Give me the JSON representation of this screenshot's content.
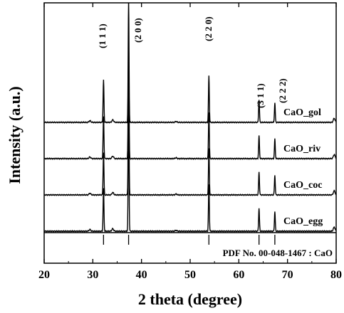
{
  "chart_data": {
    "type": "line",
    "title": "",
    "xlabel": "2 theta (degree)",
    "ylabel": "Intensity (a.u.)",
    "xlim": [
      20,
      80
    ],
    "x_ticks": [
      20,
      30,
      40,
      50,
      60,
      70,
      80
    ],
    "y_ticks_shown": false,
    "grid": false,
    "series": [
      {
        "name": "CaO_gol",
        "offset": 3
      },
      {
        "name": "CaO_riv",
        "offset": 2
      },
      {
        "name": "CaO_coc",
        "offset": 1
      },
      {
        "name": "CaO_egg",
        "offset": 0
      }
    ],
    "peaks": [
      {
        "x": 32.2,
        "label": "(1 1 1)",
        "height": 0.52
      },
      {
        "x": 37.35,
        "label": "(2 0 0)",
        "height": 1.5
      },
      {
        "x": 53.85,
        "label": "(2 2 0)",
        "height": 0.57
      },
      {
        "x": 64.15,
        "label": "(3 1 1)",
        "height": 0.28
      },
      {
        "x": 67.4,
        "label": "(2 2 2)",
        "height": 0.24
      },
      {
        "x": 79.6,
        "label": "",
        "height": 0.05
      }
    ],
    "minor_peaks": [
      {
        "x": 29.4,
        "height": 0.02
      },
      {
        "x": 34.1,
        "height": 0.03
      },
      {
        "x": 47.1,
        "height": 0.01
      }
    ],
    "reference": {
      "label": "PDF No. 00-048-1467 : CaO",
      "lines": [
        32.2,
        37.35,
        53.85,
        64.15,
        67.4
      ]
    }
  }
}
